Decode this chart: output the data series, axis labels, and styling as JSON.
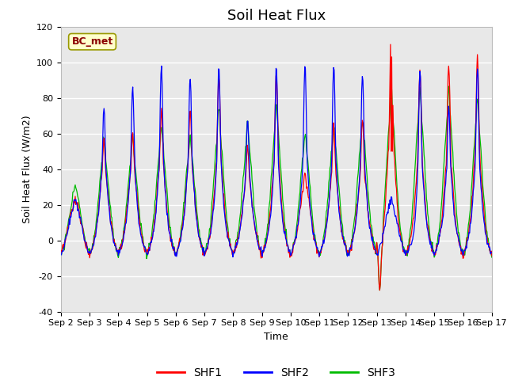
{
  "title": "Soil Heat Flux",
  "xlabel": "Time",
  "ylabel": "Soil Heat Flux (W/m2)",
  "ylim": [
    -40,
    120
  ],
  "line_colors": {
    "SHF1": "#FF0000",
    "SHF2": "#0000FF",
    "SHF3": "#00BB00"
  },
  "legend_label": "BC_met",
  "bg_color": "#E8E8E8",
  "fig_color": "#FFFFFF",
  "xtick_labels": [
    "Sep 2",
    "Sep 3",
    "Sep 4",
    "Sep 5",
    "Sep 6",
    "Sep 7",
    "Sep 8",
    "Sep 9",
    "Sep 10",
    "Sep 11",
    "Sep 12",
    "Sep 13",
    "Sep 14",
    "Sep 15",
    "Sep 16",
    "Sep 17"
  ],
  "ytick_values": [
    -40,
    -20,
    0,
    20,
    40,
    60,
    80,
    100,
    120
  ],
  "title_fontsize": 13,
  "axis_label_fontsize": 9,
  "tick_fontsize": 8,
  "legend_fontsize": 10
}
